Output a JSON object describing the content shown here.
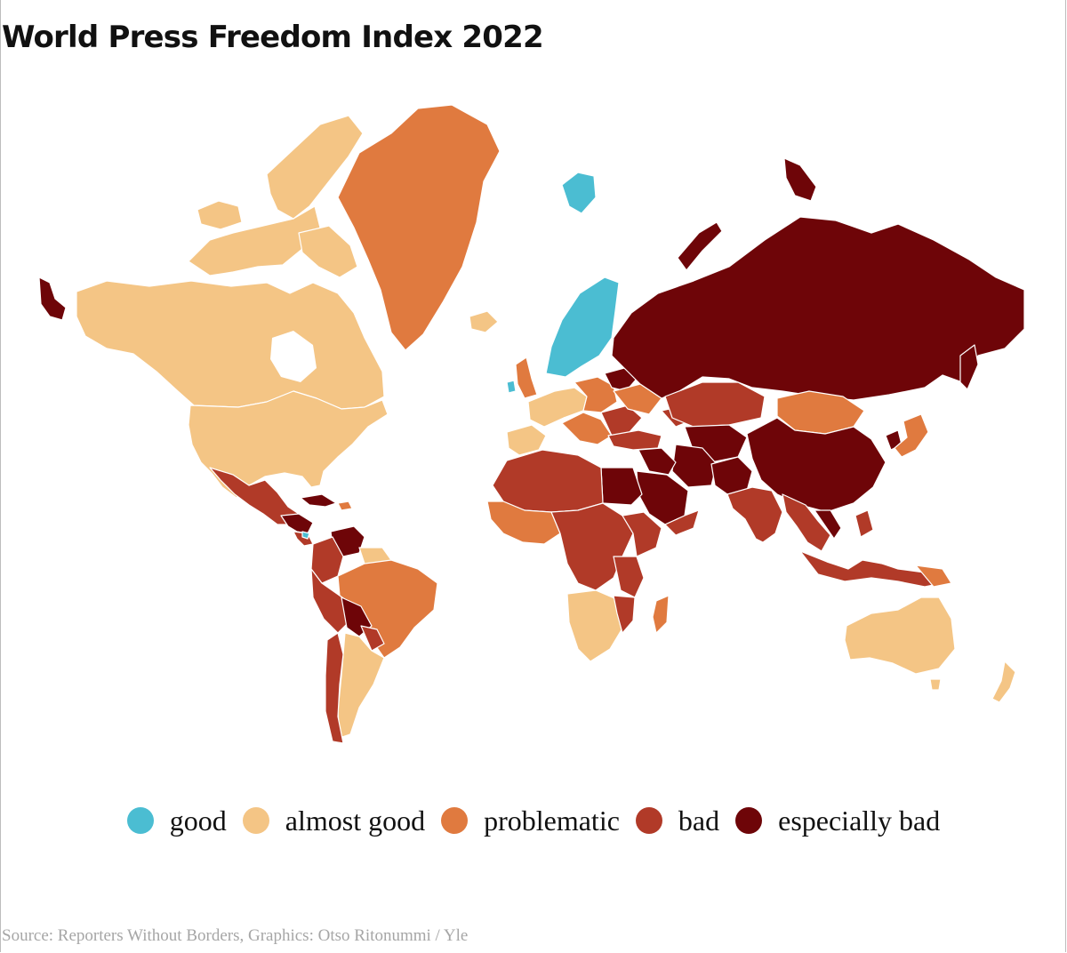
{
  "title": "World Press Freedom Index 2022",
  "legend": [
    {
      "label": "good",
      "color": "#4bbdd2"
    },
    {
      "label": "almost good",
      "color": "#f4c585"
    },
    {
      "label": "problematic",
      "color": "#e07a3f"
    },
    {
      "label": "bad",
      "color": "#b13a28"
    },
    {
      "label": "especially bad",
      "color": "#6e0508"
    }
  ],
  "source": "Source: Reporters Without Borders, Graphics: Otso Ritonummi / Yle"
}
